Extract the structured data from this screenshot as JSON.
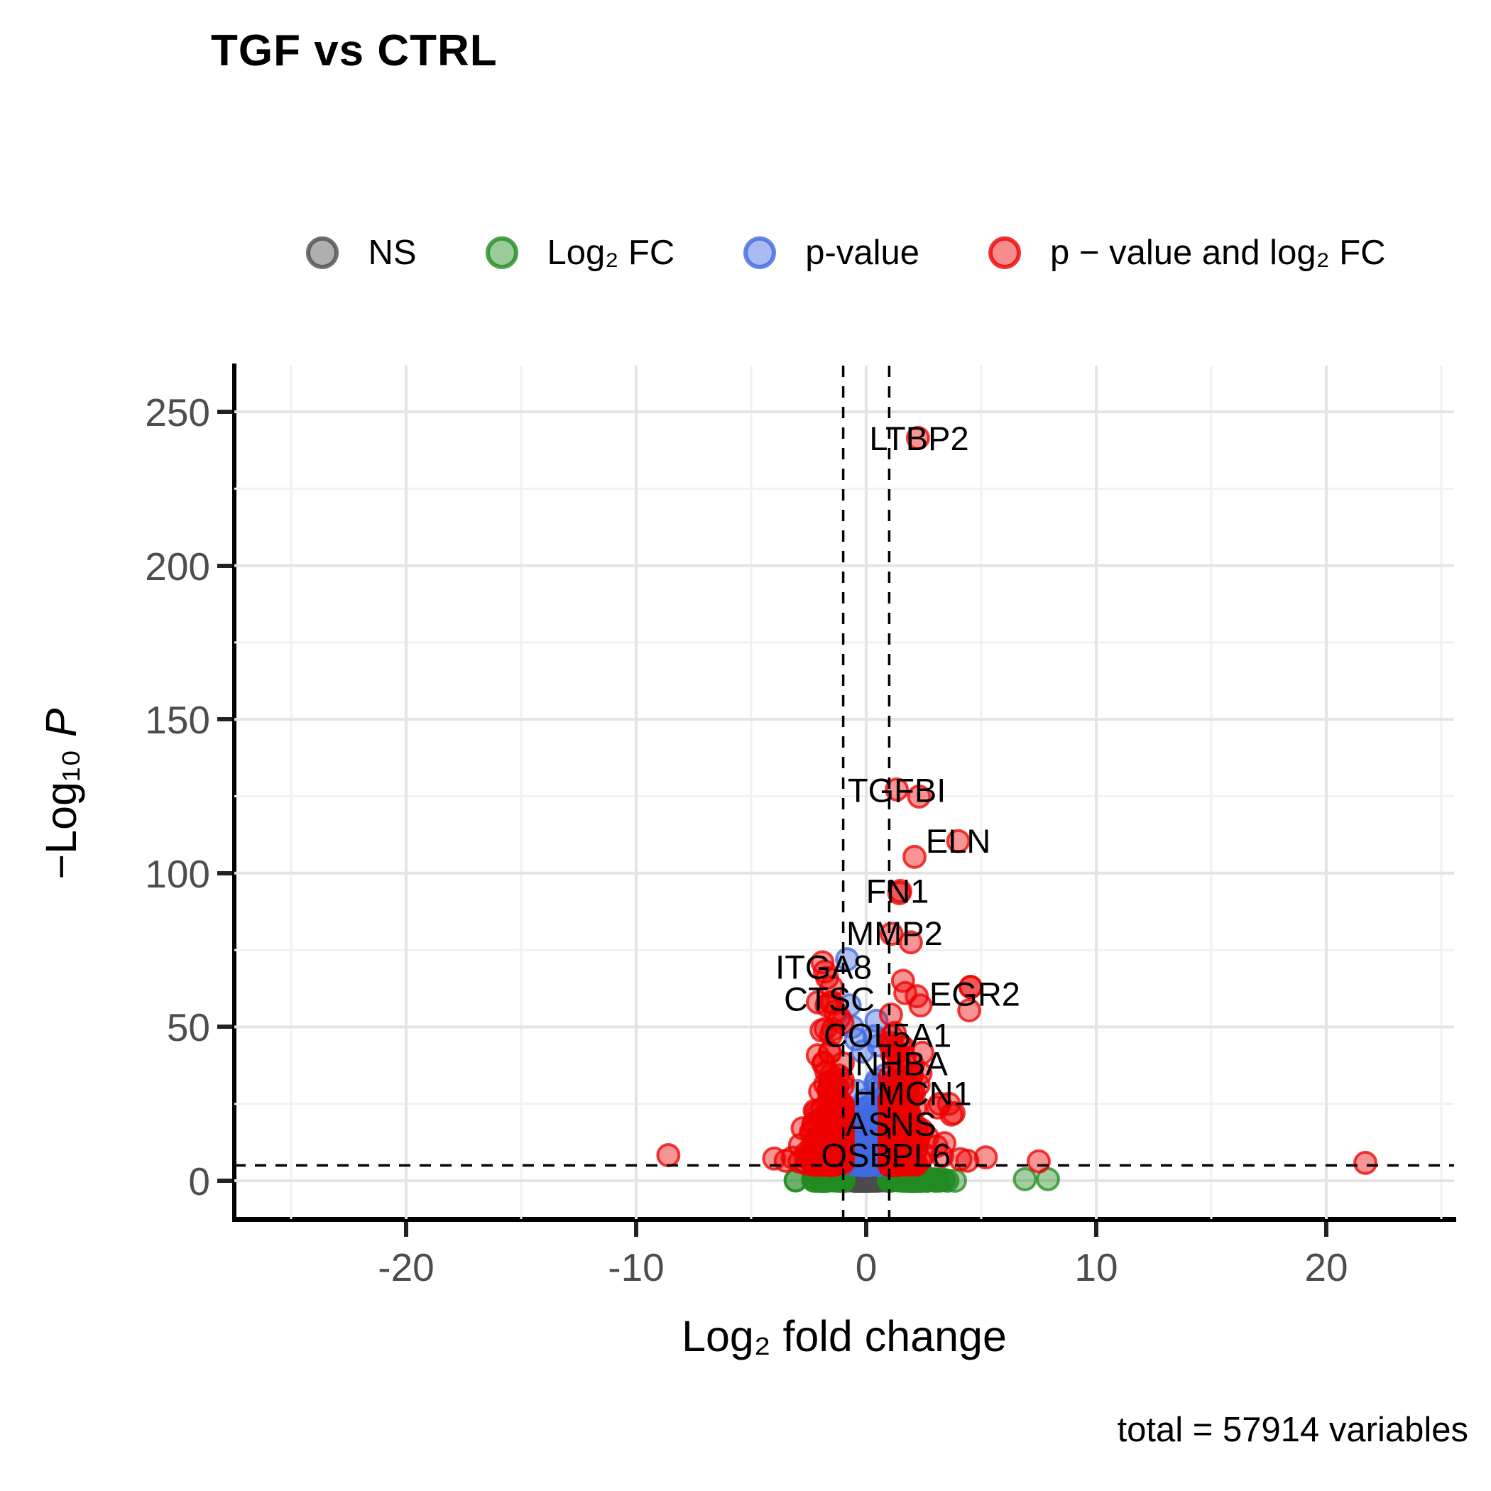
{
  "figure": {
    "title": "TGF vs CTRL",
    "caption": "total = 57914 variables"
  },
  "legend": {
    "items": [
      {
        "id": "ns",
        "label": "NS",
        "color": "#4D4D4D"
      },
      {
        "id": "log2fc",
        "label": "Log₂ FC",
        "color": "#228B22"
      },
      {
        "id": "pvalue",
        "label": "p-value",
        "color": "#4169E1"
      },
      {
        "id": "pvalue-log2fc",
        "label": "p − value and log₂ FC",
        "color": "#EE0000"
      }
    ]
  },
  "axes": {
    "x_label": "Log₂ fold change",
    "y_label_prefix": "−Log₁₀ ",
    "y_label_italic": "P"
  },
  "chart_data": {
    "type": "scatter",
    "title": "TGF vs CTRL",
    "xlabel": "Log2 fold change",
    "ylabel": "-Log10 P",
    "xlim": [
      -27.5,
      25.6
    ],
    "ylim": [
      -12.5,
      265
    ],
    "x_ticks": [
      -20,
      -10,
      0,
      10,
      20
    ],
    "x_minor_ticks": [
      -25,
      -15,
      -5,
      5,
      15,
      25
    ],
    "y_ticks": [
      0,
      50,
      100,
      150,
      200,
      250
    ],
    "y_minor_ticks": [
      25,
      75,
      125,
      175,
      225
    ],
    "grid": true,
    "legend_position": "top",
    "total_variables": 57914,
    "cutoffs": {
      "log2fc_lines": [
        -1,
        1
      ],
      "neg_log10_p_line": 5,
      "line_style": "dashed"
    },
    "category_colors": {
      "NS": "#4D4D4D",
      "FC": "#228B22",
      "P": "#4169E1",
      "BOTH": "#EE0000"
    },
    "labeled_genes": [
      {
        "gene": "LTBP2",
        "x": 2.25,
        "y": 241.5,
        "label_x": 2.3,
        "label_y": 241.3
      },
      {
        "gene": "TGFBI",
        "x": 1.33,
        "y": 127.2,
        "label_x": 1.33,
        "label_y": 127.0
      },
      {
        "gene": "ELN",
        "x": 4.0,
        "y": 110.4,
        "label_x": 4.0,
        "label_y": 110.4
      },
      {
        "gene": "FN1",
        "x": 1.48,
        "y": 94.2,
        "label_x": 1.36,
        "label_y": 94.2
      },
      {
        "gene": "MMP2",
        "x": 1.1,
        "y": 80.3,
        "label_x": 1.23,
        "label_y": 80.4
      },
      {
        "gene": "ITGA8",
        "x": -1.8,
        "y": 68.0,
        "label_x": -1.85,
        "label_y": 69.5
      },
      {
        "gene": "CTSC",
        "x": -1.55,
        "y": 58.0,
        "label_x": -1.6,
        "label_y": 59.1
      },
      {
        "gene": "EGR2",
        "x": 4.54,
        "y": 63.0,
        "label_x": 4.72,
        "label_y": 60.7
      },
      {
        "gene": "COL5A1",
        "x": 1.1,
        "y": 47.0,
        "label_x": 0.93,
        "label_y": 47.3
      },
      {
        "gene": "INHBA",
        "x": 1.4,
        "y": 38.0,
        "label_x": 1.33,
        "label_y": 38.1
      },
      {
        "gene": "HMCN1",
        "x": 2.0,
        "y": 28.5,
        "label_x": 2.01,
        "label_y": 28.4
      },
      {
        "gene": "ASNS",
        "x": 1.15,
        "y": 18.5,
        "label_x": 1.08,
        "label_y": 18.5
      },
      {
        "gene": "OSBPL6",
        "x": 1.0,
        "y": 8.5,
        "label_x": 0.86,
        "label_y": 8.3
      }
    ],
    "extra_points": {
      "BOTH": [
        [
          -8.6,
          8.3
        ],
        [
          -4.0,
          7.2
        ],
        [
          21.7,
          5.8
        ],
        [
          7.5,
          6.3
        ],
        [
          5.2,
          7.6
        ],
        [
          3.4,
          12.2
        ],
        [
          3.05,
          11.2
        ],
        [
          3.1,
          23.8
        ],
        [
          3.7,
          21.5
        ],
        [
          3.8,
          22.0
        ],
        [
          3.6,
          25.0
        ],
        [
          4.54,
          63.0
        ],
        [
          4.48,
          55.4
        ],
        [
          2.1,
          105.3
        ],
        [
          2.3,
          124.9
        ],
        [
          1.94,
          77.5
        ],
        [
          1.44,
          93.5
        ],
        [
          -1.9,
          71.0
        ],
        [
          -1.7,
          66.0
        ],
        [
          -1.5,
          63.0
        ],
        [
          -2.1,
          58.0
        ],
        [
          -1.35,
          55.0
        ],
        [
          1.6,
          65.0
        ],
        [
          1.7,
          61.0
        ],
        [
          2.2,
          60.0
        ],
        [
          3.3,
          8.0
        ],
        [
          4.1,
          7.0
        ],
        [
          4.4,
          6.5
        ],
        [
          -3.5,
          6.5
        ],
        [
          -3.2,
          7.5
        ],
        [
          -2.9,
          6.2
        ]
      ],
      "P": [
        [
          -0.83,
          72.0
        ],
        [
          -0.72,
          57.0
        ],
        [
          -0.6,
          50.0
        ],
        [
          0.45,
          52.0
        ],
        [
          0.35,
          47.0
        ],
        [
          0.55,
          44.0
        ],
        [
          -0.45,
          46.0
        ]
      ],
      "FC": [
        [
          6.9,
          0.5
        ],
        [
          7.9,
          0.5
        ]
      ]
    },
    "clusters": [
      {
        "category": "NS",
        "count": 420,
        "x_center": 0.15,
        "x_spread": 0.42,
        "x_min": -0.98,
        "x_max": 0.98,
        "y_shape": "floor",
        "y_min": 0,
        "y_max": 4.9
      },
      {
        "category": "FC",
        "count": 95,
        "x_center": -1.35,
        "x_spread": 0.6,
        "x_min": -3.45,
        "x_max": -1.0,
        "y_shape": "wedge",
        "y_min": 0,
        "y_max": 4.5
      },
      {
        "category": "FC",
        "count": 175,
        "x_center": 1.5,
        "x_spread": 0.85,
        "x_min": 1.0,
        "x_max": 4.5,
        "y_shape": "wedge",
        "y_min": 0,
        "y_max": 4.5
      },
      {
        "category": "P",
        "count": 155,
        "x_center": 0.2,
        "x_spread": 0.42,
        "x_min": -0.97,
        "x_max": 0.97,
        "y_shape": "decay",
        "y_min": 5,
        "y_max": 42,
        "y_scale": 8
      },
      {
        "category": "BOTH",
        "count": 215,
        "x_center": -1.5,
        "x_spread": 0.45,
        "x_min": -3.4,
        "x_max": -1.02,
        "y_shape": "decay",
        "y_min": 5,
        "y_max": 58,
        "y_scale": 11
      },
      {
        "category": "BOTH",
        "count": 215,
        "x_center": 1.5,
        "x_spread": 0.5,
        "x_min": 1.02,
        "x_max": 3.2,
        "y_shape": "decay",
        "y_min": 5,
        "y_max": 62,
        "y_scale": 12
      }
    ]
  }
}
